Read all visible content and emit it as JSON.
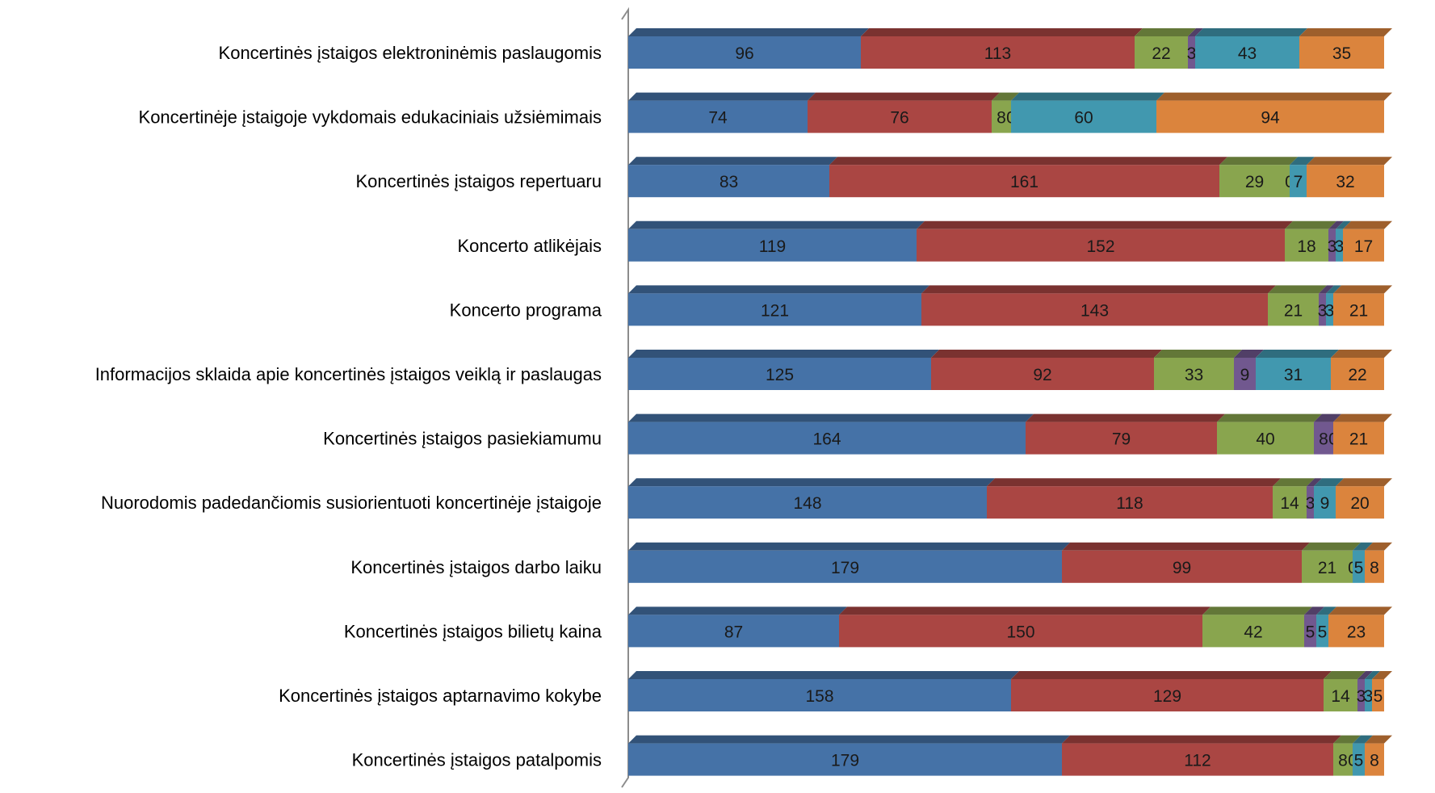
{
  "chart_data": {
    "type": "bar",
    "orientation": "horizontal",
    "stacked": true,
    "style": "3d",
    "grid": false,
    "legend": "none",
    "categories": [
      "Koncertinės įstaigos elektroninėmis paslaugomis",
      "Koncertinėje įstaigoje vykdomais edukaciniais užsiėmimais",
      "Koncertinės įstaigos repertuaru",
      "Koncerto atlikėjais",
      "Koncerto programa",
      "Informacijos sklaida apie koncertinės įstaigos veiklą ir paslaugas",
      "Koncertinės įstaigos pasiekiamumu",
      "Nuorodomis padedančiomis susiorientuoti koncertinėje įstaigoje",
      "Koncertinės įstaigos darbo laiku",
      "Koncertinės įstaigos bilietų kaina",
      "Koncertinės įstaigos aptarnavimo kokybe",
      "Koncertinės įstaigos patalpomis"
    ],
    "series": [
      {
        "color": "#4572A7",
        "values": [
          96,
          74,
          83,
          119,
          121,
          125,
          164,
          148,
          179,
          87,
          158,
          179
        ]
      },
      {
        "color": "#AA4643",
        "values": [
          113,
          76,
          161,
          152,
          143,
          92,
          79,
          118,
          99,
          150,
          129,
          112
        ]
      },
      {
        "color": "#89A54E",
        "values": [
          22,
          8,
          29,
          18,
          21,
          33,
          40,
          14,
          21,
          42,
          14,
          8
        ]
      },
      {
        "color": "#71588F",
        "values": [
          3,
          0,
          0,
          3,
          3,
          9,
          8,
          3,
          0,
          5,
          3,
          0
        ]
      },
      {
        "color": "#4198AF",
        "values": [
          43,
          60,
          7,
          3,
          3,
          31,
          0,
          9,
          5,
          5,
          3,
          5
        ]
      },
      {
        "color": "#DB843D",
        "values": [
          35,
          94,
          32,
          17,
          21,
          22,
          21,
          20,
          8,
          23,
          5,
          8
        ]
      }
    ]
  }
}
